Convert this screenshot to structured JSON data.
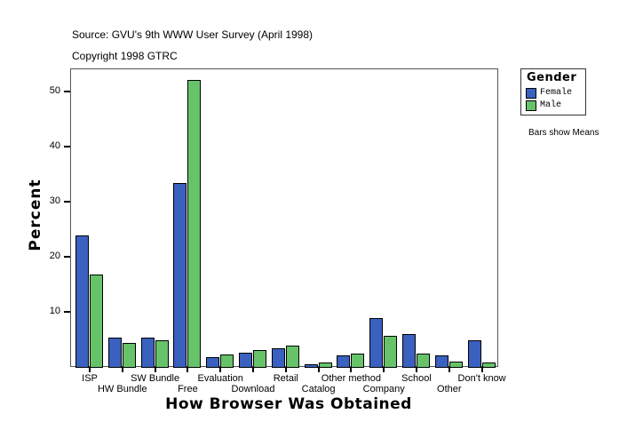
{
  "header": {
    "source": "Source: GVU's 9th WWW User Survey (April 1998)",
    "copyright": "Copyright 1998 GTRC"
  },
  "legend": {
    "title": "Gender",
    "items": [
      {
        "label": "Female",
        "color": "#3a60c0"
      },
      {
        "label": "Male",
        "color": "#66c36a"
      }
    ]
  },
  "note": "Bars show Means",
  "chart_data": {
    "type": "bar",
    "title": "",
    "xlabel": "How Browser Was Obtained",
    "ylabel": "Percent",
    "ylim": [
      0,
      54
    ],
    "yticks": [
      10,
      20,
      30,
      40,
      50
    ],
    "grid": false,
    "legend_position": "right",
    "categories": [
      "ISP",
      "HW Bundle",
      "SW Bundle",
      "Free",
      "Evaluation",
      "Download",
      "Retail",
      "Catalog",
      "Other method",
      "Company",
      "School",
      "Other",
      "Don't know"
    ],
    "series": [
      {
        "name": "Female",
        "color": "#3a60c0",
        "values": [
          23.9,
          5.3,
          5.3,
          33.4,
          1.8,
          2.6,
          3.4,
          0.5,
          2.1,
          8.9,
          6.0,
          2.1,
          4.8
        ]
      },
      {
        "name": "Male",
        "color": "#66c36a",
        "values": [
          16.8,
          4.4,
          4.8,
          52.1,
          2.3,
          3.1,
          3.9,
          0.8,
          2.4,
          5.6,
          2.4,
          1.0,
          0.8
        ]
      }
    ]
  }
}
